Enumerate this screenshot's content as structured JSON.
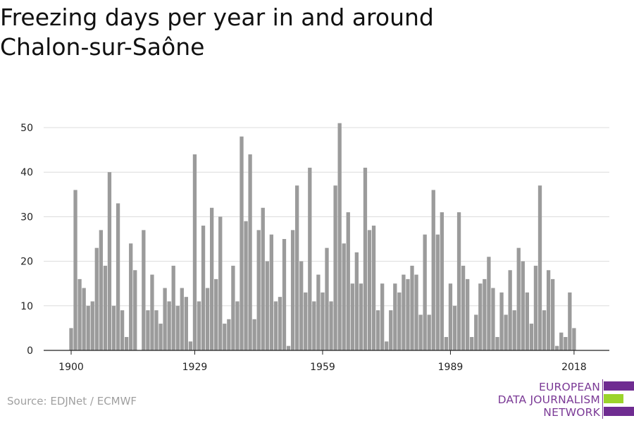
{
  "title": "Freezing days per year in and around Chalon-sur-Saône",
  "source": "Source: EDJNet / ECMWF",
  "logo": {
    "line1": "EUROPEAN",
    "line2": "DATA JOURNALISM",
    "line3": "NETWORK",
    "colors": [
      "#6f2c91",
      "#9bd42b",
      "#6f2c91"
    ]
  },
  "chart_data": {
    "type": "bar",
    "title": "Freezing days per year in and around Chalon-sur-Saône",
    "xlabel": "",
    "ylabel": "",
    "x_start": 1900,
    "x_end": 2021,
    "x_ticks": [
      1900,
      1929,
      1959,
      1989,
      2018
    ],
    "y_ticks": [
      0,
      10,
      20,
      30,
      40,
      50
    ],
    "ylim": [
      0,
      53
    ],
    "grid": true,
    "bar_color": "#9b9b9b",
    "values": [
      5,
      36,
      16,
      14,
      10,
      11,
      23,
      27,
      19,
      40,
      10,
      33,
      9,
      3,
      24,
      18,
      0,
      27,
      9,
      17,
      9,
      6,
      14,
      11,
      19,
      10,
      14,
      12,
      2,
      44,
      11,
      28,
      14,
      32,
      16,
      30,
      6,
      7,
      19,
      11,
      48,
      29,
      44,
      7,
      27,
      32,
      20,
      26,
      11,
      12,
      25,
      1,
      27,
      37,
      20,
      13,
      41,
      11,
      17,
      13,
      23,
      11,
      37,
      51,
      24,
      31,
      15,
      22,
      15,
      41,
      27,
      28,
      9,
      15,
      2,
      9,
      15,
      13,
      17,
      16,
      19,
      17,
      8,
      26,
      8,
      36,
      26,
      31,
      3,
      15,
      10,
      31,
      19,
      16,
      3,
      8,
      15,
      16,
      21,
      14,
      3,
      13,
      8,
      18,
      9,
      23,
      20,
      13,
      6,
      19,
      37,
      9,
      18,
      16,
      1,
      4,
      3,
      13,
      5
    ]
  }
}
